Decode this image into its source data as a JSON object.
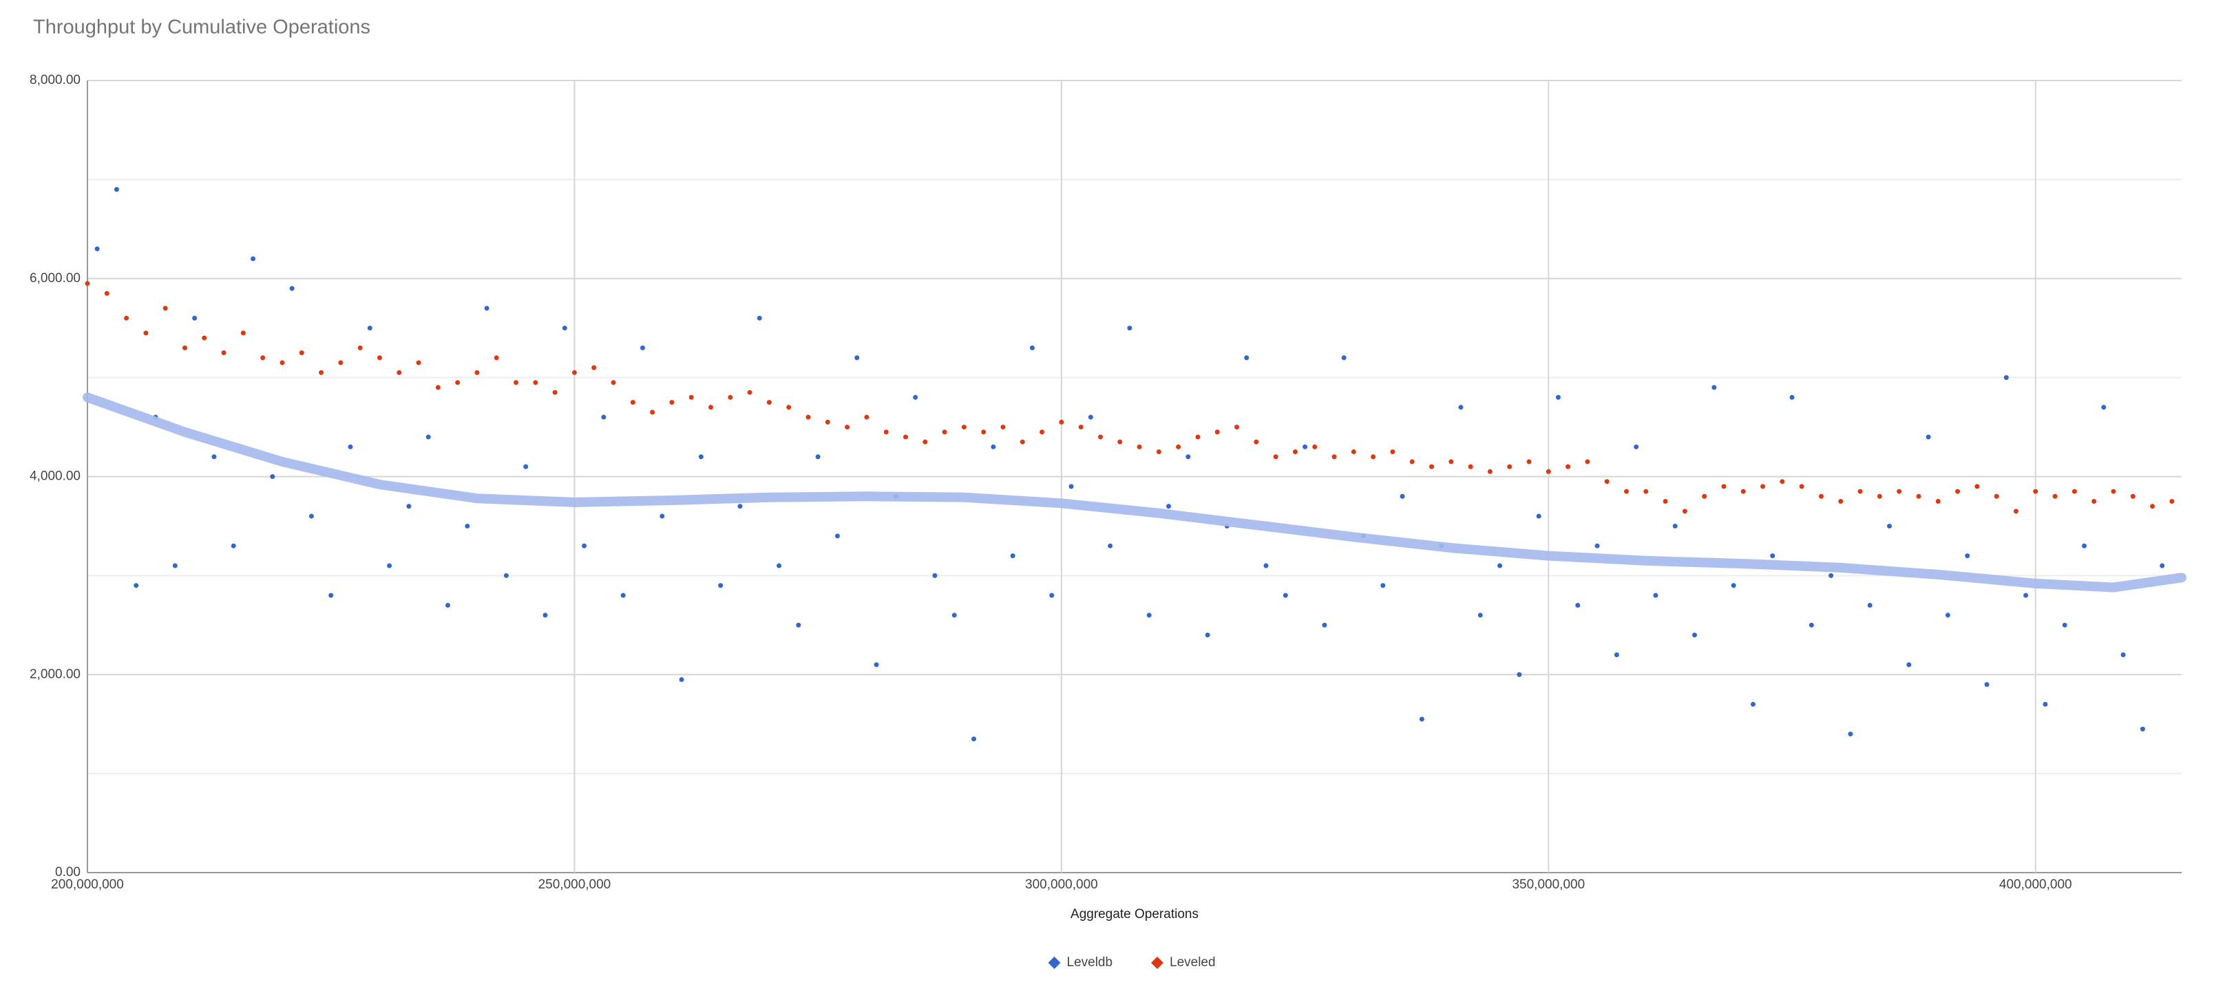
{
  "chart_data": {
    "type": "scatter",
    "title": "Throughput by Cumulative Operations",
    "x_label": "Aggregate Operations",
    "xlim": [
      200000000,
      415000000
    ],
    "ylim": [
      0,
      8000
    ],
    "xticks": [
      {
        "value": 200000000,
        "label": "200,000,000"
      },
      {
        "value": 250000000,
        "label": "250,000,000"
      },
      {
        "value": 300000000,
        "label": "300,000,000"
      },
      {
        "value": 350000000,
        "label": "350,000,000"
      },
      {
        "value": 400000000,
        "label": "400,000,000"
      }
    ],
    "yticks": [
      {
        "value": 0,
        "label": "0.00"
      },
      {
        "value": 2000,
        "label": "2,000.00"
      },
      {
        "value": 4000,
        "label": "4,000.00"
      },
      {
        "value": 6000,
        "label": "6,000.00"
      },
      {
        "value": 8000,
        "label": "8,000.00"
      }
    ],
    "minor_yticks": [
      1000,
      3000,
      5000,
      7000
    ],
    "grid": true,
    "legend": "bottom",
    "series": [
      {
        "name": "Leveldb",
        "color": "#3366cc",
        "x": [
          201000000,
          203000000,
          205000000,
          207000000,
          209000000,
          211000000,
          213000000,
          215000000,
          217000000,
          219000000,
          221000000,
          223000000,
          225000000,
          227000000,
          229000000,
          231000000,
          233000000,
          235000000,
          237000000,
          239000000,
          241000000,
          243000000,
          245000000,
          247000000,
          249000000,
          251000000,
          253000000,
          255000000,
          257000000,
          259000000,
          261000000,
          263000000,
          265000000,
          267000000,
          269000000,
          271000000,
          273000000,
          275000000,
          277000000,
          279000000,
          281000000,
          283000000,
          285000000,
          287000000,
          289000000,
          291000000,
          293000000,
          295000000,
          297000000,
          299000000,
          301000000,
          303000000,
          305000000,
          307000000,
          309000000,
          311000000,
          313000000,
          315000000,
          317000000,
          319000000,
          321000000,
          323000000,
          325000000,
          327000000,
          329000000,
          331000000,
          333000000,
          335000000,
          337000000,
          339000000,
          341000000,
          343000000,
          345000000,
          347000000,
          349000000,
          351000000,
          353000000,
          355000000,
          357000000,
          359000000,
          361000000,
          363000000,
          365000000,
          367000000,
          369000000,
          371000000,
          373000000,
          375000000,
          377000000,
          379000000,
          381000000,
          383000000,
          385000000,
          387000000,
          389000000,
          391000000,
          393000000,
          395000000,
          397000000,
          399000000,
          401000000,
          403000000,
          405000000,
          407000000,
          409000000,
          411000000,
          413000000
        ],
        "values": [
          6300,
          6900,
          2900,
          4600,
          3100,
          5600,
          4200,
          3300,
          6200,
          4000,
          5900,
          3600,
          2800,
          4300,
          5500,
          3100,
          3700,
          4400,
          2700,
          3500,
          5700,
          3000,
          4100,
          2600,
          5500,
          3300,
          4600,
          2800,
          5300,
          3600,
          1950,
          4200,
          2900,
          3700,
          5600,
          3100,
          2500,
          4200,
          3400,
          5200,
          2100,
          3800,
          4800,
          3000,
          2600,
          1350,
          4300,
          3200,
          5300,
          2800,
          3900,
          4600,
          3300,
          5500,
          2600,
          3700,
          4200,
          2400,
          3500,
          5200,
          3100,
          2800,
          4300,
          2500,
          5200,
          3400,
          2900,
          3800,
          1550,
          3300,
          4700,
          2600,
          3100,
          2000,
          3600,
          4800,
          2700,
          3300,
          2200,
          4300,
          2800,
          3500,
          2400,
          4900,
          2900,
          1700,
          3200,
          4800,
          2500,
          3000,
          1400,
          2700,
          3500,
          2100,
          4400,
          2600,
          3200,
          1900,
          5000,
          2800,
          1700,
          2500,
          3300,
          4700,
          2200,
          1450,
          3100
        ]
      },
      {
        "name": "Leveled",
        "color": "#dc3912",
        "x": [
          200000000,
          202000000,
          204000000,
          206000000,
          208000000,
          210000000,
          212000000,
          214000000,
          216000000,
          218000000,
          220000000,
          222000000,
          224000000,
          226000000,
          228000000,
          230000000,
          232000000,
          234000000,
          236000000,
          238000000,
          240000000,
          242000000,
          244000000,
          246000000,
          248000000,
          250000000,
          252000000,
          254000000,
          256000000,
          258000000,
          260000000,
          262000000,
          264000000,
          266000000,
          268000000,
          270000000,
          272000000,
          274000000,
          276000000,
          278000000,
          280000000,
          282000000,
          284000000,
          286000000,
          288000000,
          290000000,
          292000000,
          294000000,
          296000000,
          298000000,
          300000000,
          302000000,
          304000000,
          306000000,
          308000000,
          310000000,
          312000000,
          314000000,
          316000000,
          318000000,
          320000000,
          322000000,
          324000000,
          326000000,
          328000000,
          330000000,
          332000000,
          334000000,
          336000000,
          338000000,
          340000000,
          342000000,
          344000000,
          346000000,
          348000000,
          350000000,
          352000000,
          354000000,
          356000000,
          358000000,
          360000000,
          362000000,
          364000000,
          366000000,
          368000000,
          370000000,
          372000000,
          374000000,
          376000000,
          378000000,
          380000000,
          382000000,
          384000000,
          386000000,
          388000000,
          390000000,
          392000000,
          394000000,
          396000000,
          398000000,
          400000000,
          402000000,
          404000000,
          406000000,
          408000000,
          410000000,
          412000000,
          414000000
        ],
        "values": [
          5950,
          5850,
          5600,
          5450,
          5700,
          5300,
          5400,
          5250,
          5450,
          5200,
          5150,
          5250,
          5050,
          5150,
          5300,
          5200,
          5050,
          5150,
          4900,
          4950,
          5050,
          5200,
          4950,
          4950,
          4850,
          5050,
          5100,
          4950,
          4750,
          4650,
          4750,
          4800,
          4700,
          4800,
          4850,
          4750,
          4700,
          4600,
          4550,
          4500,
          4600,
          4450,
          4400,
          4350,
          4450,
          4500,
          4450,
          4500,
          4350,
          4450,
          4550,
          4500,
          4400,
          4350,
          4300,
          4250,
          4300,
          4400,
          4450,
          4500,
          4350,
          4200,
          4250,
          4300,
          4200,
          4250,
          4200,
          4250,
          4150,
          4100,
          4150,
          4100,
          4050,
          4100,
          4150,
          4050,
          4100,
          4150,
          3950,
          3850,
          3850,
          3750,
          3650,
          3800,
          3900,
          3850,
          3900,
          3950,
          3900,
          3800,
          3750,
          3850,
          3800,
          3850,
          3800,
          3750,
          3850,
          3900,
          3800,
          3650,
          3850,
          3800,
          3850,
          3750,
          3850,
          3800,
          3700,
          3750
        ]
      }
    ],
    "trendline": {
      "color": "#a4b8ec",
      "x": [
        200000000,
        210000000,
        220000000,
        230000000,
        240000000,
        250000000,
        260000000,
        270000000,
        280000000,
        290000000,
        300000000,
        310000000,
        320000000,
        330000000,
        340000000,
        350000000,
        360000000,
        370000000,
        380000000,
        390000000,
        400000000,
        408000000,
        415000000
      ],
      "values": [
        4800,
        4450,
        4150,
        3920,
        3780,
        3740,
        3760,
        3790,
        3800,
        3790,
        3730,
        3630,
        3510,
        3390,
        3280,
        3200,
        3150,
        3120,
        3080,
        3010,
        2920,
        2880,
        2980
      ]
    }
  }
}
